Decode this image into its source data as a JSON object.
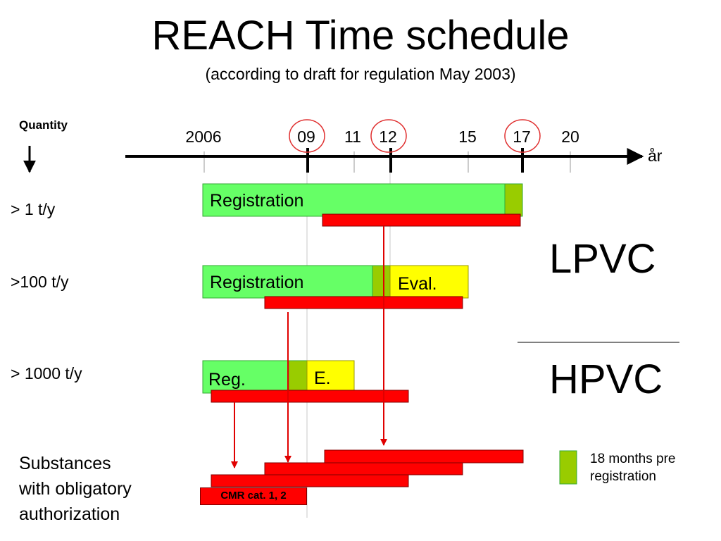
{
  "title": "REACH Time schedule",
  "subtitle": "(according to draft for regulation May 2003)",
  "quantity_label": "Quantity",
  "axis_unit": "år",
  "years": [
    "2006",
    "09",
    "11",
    "12",
    "15",
    "17",
    "20"
  ],
  "rows": [
    {
      "label": "> 1 t/y",
      "phase_1": "Registration"
    },
    {
      "label": ">100 t/y",
      "phase_1": "Registration",
      "phase_2": "Eval."
    },
    {
      "label": "> 1000 t/y",
      "phase_1": "Reg.",
      "phase_2": "E."
    }
  ],
  "groups": {
    "lpvc": "LPVC",
    "hpvc": "HPVC"
  },
  "substances_label": [
    "Substances",
    "with obligatory",
    "authorization"
  ],
  "cmr_label": "CMR cat. 1, 2",
  "legend": [
    "18 months pre",
    "registration"
  ],
  "colors": {
    "registration": "#66ff66",
    "pre_registration": "#99cc00",
    "evaluation": "#ffff00",
    "authorization": "#ff0000",
    "highlight_circle": "#e03030"
  }
}
